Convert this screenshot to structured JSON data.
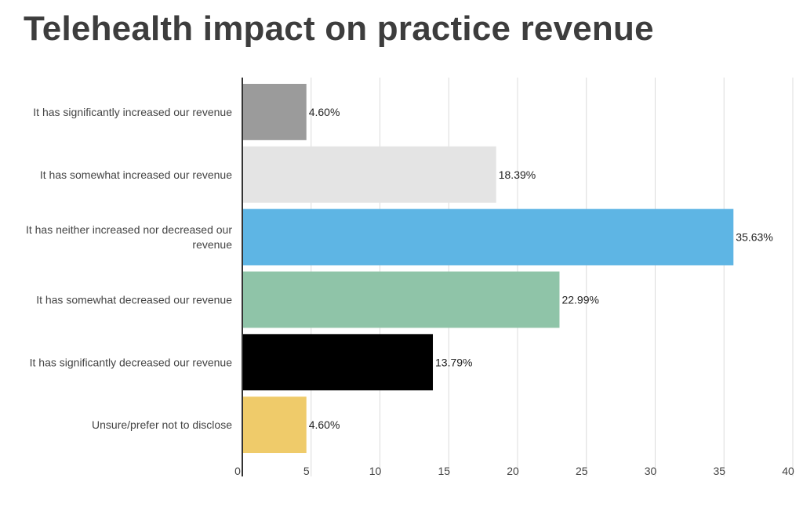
{
  "chart_data": {
    "type": "bar",
    "orientation": "horizontal",
    "title": "Telehealth impact on practice revenue",
    "xlabel": "",
    "ylabel": "",
    "xlim": [
      0,
      40
    ],
    "xticks": [
      "0",
      "5",
      "10",
      "15",
      "20",
      "25",
      "30",
      "35",
      "40"
    ],
    "grid": true,
    "categories": [
      [
        "It has significantly increased our revenue"
      ],
      [
        "It has somewhat increased our revenue"
      ],
      [
        "It has neither increased nor decreased our",
        "revenue"
      ],
      [
        "It has somewhat decreased our revenue"
      ],
      [
        "It has significantly decreased our revenue"
      ],
      [
        "Unsure/prefer not to disclose"
      ]
    ],
    "values": [
      4.6,
      18.39,
      35.63,
      22.99,
      13.79,
      4.6
    ],
    "value_labels": [
      "4.60%",
      "18.39%",
      "35.63%",
      "22.99%",
      "13.79%",
      "4.60%"
    ],
    "colors": [
      "#9b9b9b",
      "#e4e4e4",
      "#5eb5e4",
      "#8fc4a8",
      "#000000",
      "#efcb6a"
    ]
  }
}
